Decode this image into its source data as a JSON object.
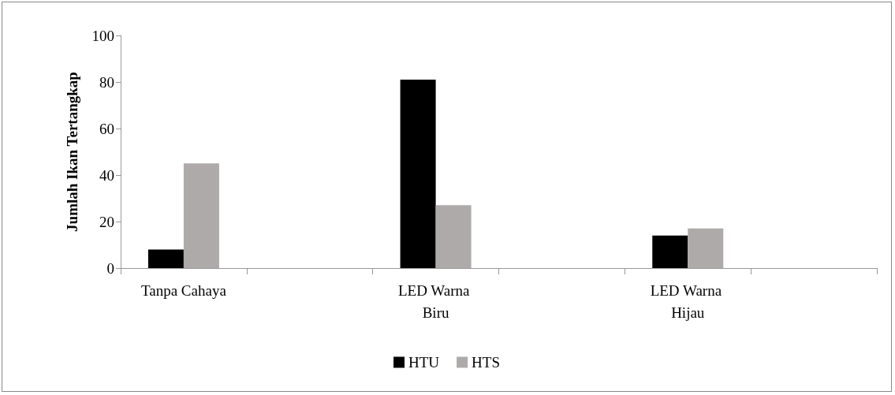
{
  "chart_data": {
    "type": "bar",
    "ylabel": "Jumlah Ikan Tertangkap",
    "categories": [
      "Tanpa Cahaya",
      null,
      "LED Warna Biru",
      null,
      "LED Warna Hijau",
      null
    ],
    "series": [
      {
        "name": "HTU",
        "color": "#000000",
        "values": [
          8,
          null,
          81,
          null,
          14,
          null
        ]
      },
      {
        "name": "HTS",
        "color": "#aeaaaa",
        "values": [
          45,
          null,
          27,
          null,
          17,
          null
        ]
      }
    ],
    "ylim": [
      0,
      100
    ],
    "yticks": [
      0,
      20,
      40,
      60,
      80,
      100
    ],
    "grid": false,
    "legend": "bottom"
  }
}
